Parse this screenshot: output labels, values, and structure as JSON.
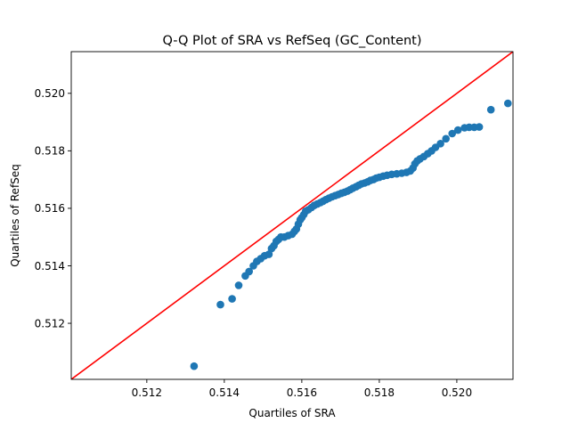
{
  "chart_data": {
    "type": "scatter",
    "title": "Q-Q Plot of SRA vs RefSeq (GC_Content)",
    "xlabel": "Quartiles of SRA",
    "ylabel": "Quartiles of RefSeq",
    "xlim": [
      0.51005,
      0.52145
    ],
    "ylim": [
      0.51005,
      0.52145
    ],
    "xticks": [
      "0.512",
      "0.514",
      "0.516",
      "0.518",
      "0.520"
    ],
    "yticks": [
      "0.512",
      "0.514",
      "0.516",
      "0.518",
      "0.520"
    ],
    "xtick_values": [
      0.512,
      0.514,
      0.516,
      0.518,
      0.52
    ],
    "ytick_values": [
      0.512,
      0.514,
      0.516,
      0.518,
      0.52
    ],
    "grid": false,
    "reference_line": {
      "label": "",
      "color": "#ff0000",
      "from": [
        0.51005,
        0.51005
      ],
      "to": [
        0.52145,
        0.52145
      ]
    },
    "series": [
      {
        "color": "#1f77b4",
        "points": [
          [
            0.51322,
            0.51051
          ],
          [
            0.5139,
            0.51265
          ],
          [
            0.5142,
            0.51285
          ],
          [
            0.51437,
            0.51332
          ],
          [
            0.51454,
            0.51365
          ],
          [
            0.51464,
            0.5138
          ],
          [
            0.51475,
            0.514
          ],
          [
            0.51484,
            0.51415
          ],
          [
            0.51494,
            0.51425
          ],
          [
            0.51504,
            0.51435
          ],
          [
            0.51515,
            0.5144
          ],
          [
            0.51522,
            0.5146
          ],
          [
            0.51528,
            0.5147
          ],
          [
            0.51534,
            0.51485
          ],
          [
            0.5154,
            0.51492
          ],
          [
            0.51546,
            0.515
          ],
          [
            0.51555,
            0.515
          ],
          [
            0.51565,
            0.51505
          ],
          [
            0.51575,
            0.5151
          ],
          [
            0.51581,
            0.5152
          ],
          [
            0.51586,
            0.51528
          ],
          [
            0.51591,
            0.51545
          ],
          [
            0.51596,
            0.5156
          ],
          [
            0.516,
            0.51568
          ],
          [
            0.51605,
            0.51578
          ],
          [
            0.5161,
            0.5159
          ],
          [
            0.51617,
            0.51595
          ],
          [
            0.51625,
            0.51603
          ],
          [
            0.51632,
            0.5161
          ],
          [
            0.5164,
            0.51615
          ],
          [
            0.51648,
            0.5162
          ],
          [
            0.51655,
            0.51625
          ],
          [
            0.51662,
            0.5163
          ],
          [
            0.5167,
            0.51635
          ],
          [
            0.51678,
            0.5164
          ],
          [
            0.51686,
            0.51644
          ],
          [
            0.51694,
            0.51648
          ],
          [
            0.51702,
            0.51652
          ],
          [
            0.5171,
            0.51656
          ],
          [
            0.51718,
            0.5166
          ],
          [
            0.51725,
            0.51665
          ],
          [
            0.51732,
            0.5167
          ],
          [
            0.5174,
            0.51675
          ],
          [
            0.51747,
            0.5168
          ],
          [
            0.51754,
            0.51685
          ],
          [
            0.51762,
            0.51688
          ],
          [
            0.5177,
            0.51692
          ],
          [
            0.51777,
            0.51697
          ],
          [
            0.51785,
            0.517
          ],
          [
            0.51792,
            0.51705
          ],
          [
            0.518,
            0.51708
          ],
          [
            0.5181,
            0.51712
          ],
          [
            0.5182,
            0.51715
          ],
          [
            0.51832,
            0.51718
          ],
          [
            0.51845,
            0.5172
          ],
          [
            0.51858,
            0.51722
          ],
          [
            0.5187,
            0.51725
          ],
          [
            0.5188,
            0.5173
          ],
          [
            0.51887,
            0.5174
          ],
          [
            0.51892,
            0.51755
          ],
          [
            0.51898,
            0.51765
          ],
          [
            0.51905,
            0.51772
          ],
          [
            0.51915,
            0.5178
          ],
          [
            0.51925,
            0.5179
          ],
          [
            0.51935,
            0.518
          ],
          [
            0.51945,
            0.51812
          ],
          [
            0.51958,
            0.51825
          ],
          [
            0.51972,
            0.51842
          ],
          [
            0.51988,
            0.5186
          ],
          [
            0.52003,
            0.51872
          ],
          [
            0.5202,
            0.5188
          ],
          [
            0.52032,
            0.51882
          ],
          [
            0.52045,
            0.51882
          ],
          [
            0.52058,
            0.51883
          ],
          [
            0.52088,
            0.51943
          ],
          [
            0.52132,
            0.51965
          ]
        ]
      }
    ]
  }
}
